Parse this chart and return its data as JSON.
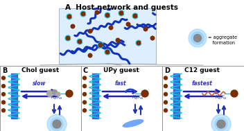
{
  "title_A": "A  Host network and guests",
  "label_B": "B",
  "label_C": "C",
  "label_D": "D",
  "subtitle_B": "Chol guest",
  "subtitle_C": "UPy guest",
  "subtitle_D": "C12 guest",
  "speed_B": "slow",
  "speed_C": "fast",
  "speed_D": "fastest",
  "blue_dark": "#2222bb",
  "blue_mid": "#3355cc",
  "cyan_helix": "#00ccee",
  "brown": "#7B2D00",
  "gray_guest": "#999999",
  "network_bg": "#ddeeff",
  "panel_border": "#aaaaaa",
  "legend_glow": "#99ddff",
  "line_color": "#555555",
  "net_lines_color": "#1133bb",
  "kd_ka_color": "#2233aa",
  "speed_color": "#3333bb",
  "chol_color": "#888888",
  "upy_color": "#2244cc",
  "c12_color": "#cc6633",
  "fibril_color": "#4488ff",
  "agg_glow": "#88ccff",
  "agg_dot": "#888888"
}
